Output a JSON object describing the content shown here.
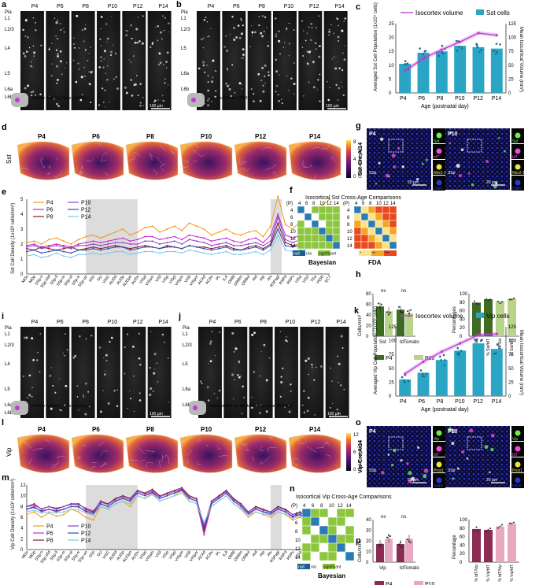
{
  "panel_letters": [
    "a",
    "b",
    "c",
    "d",
    "e",
    "f",
    "g",
    "h",
    "i",
    "j",
    "k",
    "l",
    "m",
    "n",
    "o",
    "p"
  ],
  "ages": [
    "P4",
    "P6",
    "P8",
    "P10",
    "P12",
    "P14"
  ],
  "layers_a": [
    "Pia",
    "L1",
    "L2/3",
    "L4",
    "L5",
    "L6a",
    "L6b"
  ],
  "layers_b": [
    "Pia",
    "L1",
    "L2/3",
    "L5",
    "L6a",
    "L6b"
  ],
  "scale_bar": "100 µm",
  "scale_bar_20": "20 µm",
  "region_a": "Primary Auditory Cortex (AUDp)",
  "region_b": "Perirhinal Cortex (PERI)",
  "region_i": "Primary Auditory Cortex (AUDp)",
  "region_j": "Retrosplenial Cortex, lateral agranular (RSPagl)",
  "row_label_d": "Sst",
  "row_label_l": "Vip",
  "colorbar_d": {
    "max": "8",
    "mid": "4",
    "min": "0",
    "label": "(1x10³ cells/mm³)"
  },
  "colorbar_l": {
    "max": "12",
    "mid": "6",
    "min": "0",
    "label": "(1x10³ cells/mm³)"
  },
  "panel_g": {
    "genotype": "Sst-Cre;Ai14",
    "left": "P4",
    "right": "P10",
    "region": "SSp",
    "insets_left": [
      "Sst",
      "tdT",
      "Nkx2-1",
      "DAPI"
    ],
    "insets_right": [
      "Sst",
      "tdT",
      "Nkx2-1",
      "DAPI"
    ]
  },
  "panel_o": {
    "genotype": "Vip-Cre;Ai14",
    "left": "P4",
    "right": "P10",
    "region": "SSp",
    "insets_left": [
      "Vip",
      "tdT",
      "Prox1",
      "DAPI"
    ],
    "insets_right": [
      "Vip",
      "tdT",
      "Prox1",
      "DAPI"
    ]
  },
  "panel_f": {
    "title": "Isocortical Sst Cross-Age Comparisons",
    "left_label": "Bayesian",
    "right_label": "FDA",
    "p_label": "(P)",
    "ages": [
      "4",
      "6",
      "8",
      "10",
      "12",
      "14"
    ],
    "legend_bayes": [
      "null",
      "n/a",
      "significant"
    ],
    "legend_fda": [
      "ns",
      "*",
      "**",
      "***"
    ]
  },
  "panel_n": {
    "title": "Isocortical Vip Cross-Age Comparisons",
    "label": "Bayesian",
    "p_label": "(P)",
    "ages": [
      "4",
      "6",
      "8",
      "10",
      "12",
      "14"
    ],
    "legend_bayes": [
      "null",
      "n/a",
      "significant"
    ]
  },
  "colors": {
    "p4": "#f29a16",
    "p6": "#c72ac8",
    "p8": "#8a1530",
    "p10": "#8b3fd1",
    "p12": "#2a4fa8",
    "p14": "#7cc7ea",
    "teal": "#2aa6c4",
    "magenta": "#c13ad4",
    "dkgreen": "#3d6b22",
    "ltgreen": "#b8d48a",
    "wine": "#8c2c52",
    "pink": "#e8a8c0"
  },
  "chart_data": [
    {
      "type": "bar",
      "id": "c",
      "legend": [
        "Isocortex volume",
        "Sst cells"
      ],
      "categories": [
        "P4",
        "P6",
        "P8",
        "P10",
        "P12",
        "P14"
      ],
      "series": [
        {
          "name": "Sst cells",
          "values": [
            10.5,
            14.5,
            15.0,
            17.0,
            16.5,
            16.0
          ]
        },
        {
          "name": "Isocortex volume",
          "values": [
            40,
            62,
            78,
            92,
            108,
            104
          ]
        }
      ],
      "ylabel": "Averaged Sst Cell Population (1x10⁴ cells)",
      "y2label": "Mean Isocortical Volume (mm³)",
      "xlabel": "Age (postnatal day)",
      "yticks": [
        "0",
        "5",
        "10",
        "15",
        "20",
        "25"
      ],
      "y2ticks": [
        "0",
        "25",
        "50",
        "75",
        "100",
        "125"
      ],
      "ylim": [
        0,
        25
      ],
      "y2lim": [
        0,
        125
      ]
    },
    {
      "type": "line",
      "id": "e",
      "ylabel": "Sst Cell Density (1x10³ cells/mm³)",
      "yticks": [
        "0",
        "1",
        "2",
        "3",
        "4",
        "5"
      ],
      "ylim": [
        0,
        5
      ],
      "legend": [
        "P4",
        "P6",
        "P8",
        "P10",
        "P12",
        "P14"
      ],
      "x": [
        "MOs",
        "MOp",
        "SSp-n",
        "SSp-bfd",
        "SSp-ll",
        "SSp-m",
        "SSp-ul",
        "SSp-tr",
        "SSp-un",
        "SSs",
        "GU",
        "VISC",
        "AUDd",
        "AUDp",
        "AUDpo",
        "AUDv",
        "VISal",
        "VISam",
        "VISl",
        "VISp",
        "VISpl",
        "VISpm",
        "VISli",
        "VISpor",
        "ACAd",
        "ACAv",
        "PL",
        "ILA",
        "ORBl",
        "ORBm",
        "ORBvl",
        "AId",
        "AIp",
        "AIv",
        "RSPagl",
        "RSPd",
        "RSPv",
        "VISa",
        "VISrl",
        "TEa",
        "PERI",
        "ECT"
      ],
      "series": [
        {
          "name": "P4",
          "values": [
            2.1,
            2.2,
            2.0,
            2.3,
            2.4,
            2.2,
            2.0,
            2.3,
            2.5,
            2.6,
            2.4,
            2.6,
            2.8,
            3.0,
            2.6,
            2.8,
            3.1,
            3.2,
            2.8,
            3.0,
            3.2,
            2.9,
            3.4,
            3.2,
            3.0,
            2.6,
            2.8,
            3.0,
            2.7,
            2.6,
            2.8,
            2.9,
            2.5,
            3.2,
            5.2,
            3.3,
            3.0,
            3.5,
            3.8,
            4.0,
            4.6,
            5.0
          ]
        },
        {
          "name": "P6",
          "values": [
            1.9,
            2.0,
            1.8,
            1.9,
            2.0,
            1.9,
            1.8,
            2.0,
            2.1,
            2.2,
            2.1,
            2.2,
            2.3,
            2.4,
            2.2,
            2.3,
            2.5,
            2.5,
            2.3,
            2.4,
            2.5,
            2.3,
            2.6,
            2.5,
            2.4,
            2.2,
            2.3,
            2.4,
            2.2,
            2.1,
            2.3,
            2.4,
            2.1,
            2.6,
            4.0,
            2.6,
            2.4,
            2.6,
            2.7,
            2.9,
            3.2,
            3.4
          ]
        },
        {
          "name": "P8",
          "values": [
            1.7,
            1.6,
            1.8,
            1.7,
            1.6,
            1.7,
            1.8,
            1.6,
            1.7,
            1.8,
            1.7,
            1.8,
            1.9,
            1.8,
            1.7,
            1.8,
            1.9,
            1.8,
            1.7,
            1.9,
            1.8,
            1.7,
            1.9,
            1.8,
            1.8,
            1.7,
            1.8,
            1.9,
            1.7,
            1.6,
            1.8,
            1.9,
            1.7,
            2.0,
            3.4,
            2.1,
            1.9,
            2.0,
            2.1,
            2.1,
            2.2,
            2.3
          ]
        },
        {
          "name": "P10",
          "values": [
            1.8,
            1.9,
            1.7,
            1.8,
            1.9,
            1.8,
            1.7,
            1.9,
            1.9,
            2.0,
            1.9,
            2.0,
            2.1,
            2.1,
            2.0,
            2.0,
            2.2,
            2.2,
            2.0,
            2.1,
            2.2,
            2.0,
            2.3,
            2.2,
            2.1,
            1.9,
            2.0,
            2.1,
            1.9,
            1.9,
            2.0,
            2.1,
            1.9,
            2.2,
            3.8,
            2.3,
            2.1,
            2.3,
            2.4,
            2.5,
            2.7,
            2.9
          ]
        },
        {
          "name": "P12",
          "values": [
            1.5,
            1.6,
            1.4,
            1.5,
            1.6,
            1.5,
            1.4,
            1.6,
            1.6,
            1.7,
            1.6,
            1.7,
            1.8,
            1.8,
            1.6,
            1.7,
            1.8,
            1.8,
            1.7,
            1.8,
            1.8,
            1.7,
            1.9,
            1.8,
            1.7,
            1.6,
            1.7,
            1.8,
            1.6,
            1.6,
            1.7,
            1.8,
            1.6,
            1.9,
            3.0,
            1.9,
            1.8,
            1.9,
            2.0,
            2.0,
            2.2,
            2.4
          ]
        },
        {
          "name": "P14",
          "values": [
            1.2,
            1.3,
            1.1,
            1.2,
            1.4,
            1.2,
            1.1,
            1.3,
            1.3,
            1.4,
            1.3,
            1.4,
            1.5,
            1.5,
            1.3,
            1.4,
            1.5,
            1.5,
            1.4,
            1.5,
            1.5,
            1.4,
            1.6,
            1.5,
            1.4,
            1.3,
            1.4,
            1.5,
            1.3,
            1.3,
            1.4,
            1.5,
            1.3,
            1.6,
            2.6,
            1.6,
            1.5,
            1.6,
            1.7,
            1.7,
            1.9,
            2.0
          ]
        }
      ]
    },
    {
      "type": "bar",
      "id": "h-left",
      "ylabel": "Cells/mm³",
      "categories": [
        "Sst",
        "tdTomato"
      ],
      "series": [
        {
          "name": "P4",
          "values": [
            56,
            50
          ]
        },
        {
          "name": "P10",
          "values": [
            47,
            43
          ]
        }
      ],
      "yticks": [
        "0",
        "20",
        "40",
        "60",
        "80"
      ],
      "ylim": [
        0,
        80
      ],
      "sig": [
        "ns",
        "ns"
      ],
      "legend": [
        "P4",
        "P10"
      ]
    },
    {
      "type": "bar",
      "id": "h-right",
      "ylabel": "Percentages",
      "categories": [
        "% tdT/Sst",
        "% Sst/tdT",
        "% tdT/Sst",
        "% Sst/tdT"
      ],
      "values": [
        79,
        87,
        82,
        89
      ],
      "yticks": [
        "0",
        "20",
        "40",
        "60",
        "80",
        "100"
      ],
      "ylim": [
        0,
        100
      ]
    },
    {
      "type": "bar",
      "id": "k",
      "legend": [
        "Isocortex volume",
        "Vip cells"
      ],
      "categories": [
        "P4",
        "P6",
        "P8",
        "P10",
        "P12",
        "P14"
      ],
      "series": [
        {
          "name": "Vip cells",
          "values": [
            30,
            42,
            65,
            82,
            95,
            85
          ]
        },
        {
          "name": "Isocortex volume",
          "values": [
            40,
            62,
            80,
            95,
            110,
            112
          ]
        }
      ],
      "ylabel": "Averaged Vip Cell Population (1x10³ cells)",
      "y2label": "Mean Isocortical Volume (mm³)",
      "xlabel": "Age (postnatal day)",
      "yticks": [
        "0",
        "25",
        "50",
        "75",
        "100",
        "125"
      ],
      "y2ticks": [
        "0",
        "25",
        "50",
        "75",
        "100",
        "125"
      ],
      "ylim": [
        0,
        125
      ],
      "y2lim": [
        0,
        125
      ]
    },
    {
      "type": "line",
      "id": "m",
      "ylabel": "Vip Cell Density (1x10³ cells/mm³)",
      "yticks": [
        "0",
        "2",
        "4",
        "6",
        "8",
        "10",
        "12"
      ],
      "ylim": [
        0,
        12
      ],
      "legend": [
        "P4",
        "P6",
        "P8",
        "P10",
        "P12",
        "P14"
      ],
      "x": [
        "MOs",
        "MOp",
        "SSp-n",
        "SSp-bfd",
        "SSp-ll",
        "SSp-m",
        "SSp-ul",
        "SSp-tr",
        "SSp-un",
        "SSs",
        "GU",
        "VISC",
        "AUDd",
        "AUDp",
        "AUDpo",
        "AUDv",
        "VISal",
        "VISam",
        "VISl",
        "VISp",
        "VISpl",
        "VISpm",
        "VISli",
        "VISpor",
        "ACAd",
        "ACAv",
        "PL",
        "ILA",
        "ORBl",
        "ORBm",
        "ORBvl",
        "AId",
        "AIp",
        "AIv",
        "RSPagl",
        "RSPd",
        "RSPv",
        "VISa",
        "VISrl",
        "TEa",
        "PERI",
        "ECT"
      ],
      "series": [
        {
          "name": "P4",
          "values": [
            6.5,
            7.0,
            6.0,
            6.8,
            6.2,
            6.5,
            7.5,
            7.0,
            6.0,
            5.5,
            8.0,
            7.5,
            8.5,
            9.0,
            8.0,
            10.0,
            9.5,
            10.5,
            9.0,
            9.5,
            10.0,
            11.0,
            9.0,
            8.5,
            3.0,
            8.0,
            9.0,
            10.0,
            8.5,
            7.5,
            6.0,
            7.0,
            6.5,
            6.0,
            7.0,
            6.5,
            5.5,
            6.0,
            5.0,
            4.5,
            3.5,
            3.0
          ]
        },
        {
          "name": "P6",
          "values": [
            7.5,
            8.0,
            7.0,
            7.5,
            7.0,
            7.5,
            8.0,
            8.0,
            7.0,
            6.5,
            8.5,
            8.0,
            9.0,
            9.5,
            9.0,
            10.5,
            10.0,
            10.8,
            9.5,
            10.0,
            10.5,
            11.2,
            9.5,
            9.0,
            2.7,
            8.5,
            9.5,
            10.5,
            9.0,
            8.0,
            6.5,
            7.5,
            7.0,
            6.5,
            7.5,
            7.0,
            6.0,
            6.5,
            5.5,
            5.0,
            4.0,
            3.5
          ]
        },
        {
          "name": "P8",
          "values": [
            8.0,
            8.5,
            7.5,
            8.0,
            7.5,
            8.0,
            8.5,
            8.5,
            7.5,
            7.0,
            9.0,
            8.5,
            9.5,
            10.0,
            9.5,
            11.0,
            10.5,
            11.2,
            10.0,
            10.5,
            11.0,
            11.5,
            10.0,
            9.5,
            3.5,
            9.0,
            10.0,
            11.0,
            9.5,
            8.5,
            7.0,
            8.0,
            7.5,
            7.0,
            8.0,
            7.5,
            6.5,
            7.0,
            6.0,
            5.5,
            4.5,
            4.0
          ]
        },
        {
          "name": "P10",
          "values": [
            8.0,
            8.2,
            7.6,
            8.0,
            7.7,
            8.0,
            8.4,
            8.3,
            7.7,
            7.2,
            8.8,
            8.4,
            9.3,
            9.8,
            9.3,
            10.8,
            10.3,
            11.0,
            9.8,
            10.3,
            10.8,
            11.3,
            9.8,
            9.3,
            4.5,
            8.8,
            9.8,
            10.8,
            9.3,
            8.3,
            7.0,
            7.8,
            7.3,
            7.0,
            7.8,
            7.3,
            6.5,
            6.8,
            6.0,
            5.5,
            4.8,
            4.2
          ]
        },
        {
          "name": "P12",
          "values": [
            7.5,
            7.8,
            7.2,
            7.5,
            7.2,
            7.5,
            8.0,
            7.9,
            7.2,
            6.8,
            8.5,
            8.0,
            9.0,
            9.5,
            9.0,
            10.5,
            10.0,
            10.6,
            9.5,
            10.0,
            10.5,
            11.0,
            9.5,
            9.0,
            4.0,
            8.5,
            9.5,
            10.5,
            9.0,
            8.0,
            6.8,
            7.5,
            7.0,
            6.8,
            7.5,
            7.0,
            6.2,
            6.5,
            5.8,
            5.2,
            4.5,
            4.0
          ]
        },
        {
          "name": "P14",
          "values": [
            7.0,
            7.3,
            6.8,
            7.0,
            6.8,
            7.0,
            7.5,
            7.4,
            6.8,
            6.4,
            8.0,
            7.6,
            8.5,
            9.0,
            8.5,
            10.0,
            9.5,
            10.2,
            9.0,
            9.5,
            10.0,
            10.5,
            9.0,
            8.5,
            5.0,
            8.0,
            9.0,
            10.0,
            8.5,
            7.6,
            6.4,
            7.0,
            6.6,
            6.4,
            7.0,
            6.6,
            5.8,
            6.2,
            5.5,
            5.0,
            4.2,
            3.8
          ]
        }
      ]
    },
    {
      "type": "bar",
      "id": "p-left",
      "ylabel": "Cells/mm³",
      "categories": [
        "Vip",
        "tdTomato"
      ],
      "series": [
        {
          "name": "P4",
          "values": [
            17,
            17
          ]
        },
        {
          "name": "P10",
          "values": [
            22,
            22
          ]
        }
      ],
      "yticks": [
        "0",
        "10",
        "20",
        "30",
        "40"
      ],
      "ylim": [
        0,
        40
      ],
      "sig": [
        "ns",
        "ns"
      ],
      "legend": [
        "P4",
        "P10"
      ]
    },
    {
      "type": "bar",
      "id": "p-right",
      "ylabel": "Percentage",
      "categories": [
        "% tdT/Vip",
        "% Vip/tdT",
        "% tdT/Vip",
        "% Vip/tdT"
      ],
      "values": [
        78,
        76,
        84,
        90
      ],
      "yticks": [
        "0",
        "20",
        "40",
        "60",
        "80",
        "100"
      ],
      "ylim": [
        0,
        100
      ]
    }
  ]
}
